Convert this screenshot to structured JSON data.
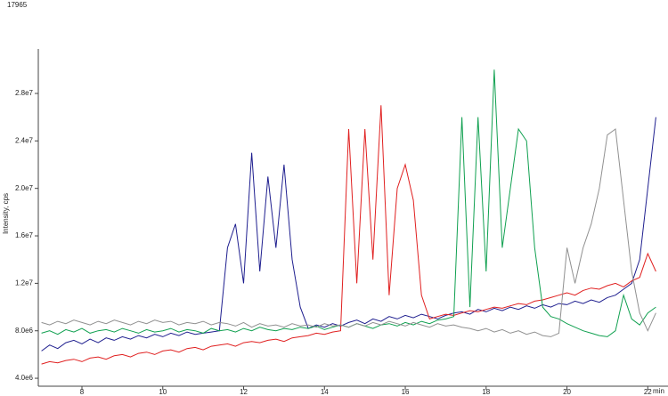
{
  "chart_data": {
    "type": "line",
    "title": "17965",
    "ylabel": "Intensity, cps",
    "xlabel": "min",
    "xlim": [
      6.92,
      22.5
    ],
    "ylim": [
      3330000,
      31750000
    ],
    "xticks": [
      8,
      10,
      12,
      14,
      16,
      18,
      20,
      22
    ],
    "yticks": [
      {
        "value": 4000000,
        "label": "4.0e6"
      },
      {
        "value": 8000000,
        "label": "8.0e6"
      },
      {
        "value": 12000000,
        "label": "1.2e7"
      },
      {
        "value": 16000000,
        "label": "1.6e7"
      },
      {
        "value": 20000000,
        "label": "2.0e7"
      },
      {
        "value": 24000000,
        "label": "2.4e7"
      },
      {
        "value": 28000000,
        "label": "2.8e7"
      }
    ],
    "x": [
      7.0,
      7.2,
      7.4,
      7.6,
      7.8,
      8.0,
      8.2,
      8.4,
      8.6,
      8.8,
      9.0,
      9.2,
      9.4,
      9.6,
      9.8,
      10.0,
      10.2,
      10.4,
      10.6,
      10.8,
      11.0,
      11.2,
      11.4,
      11.6,
      11.8,
      12.0,
      12.2,
      12.4,
      12.6,
      12.8,
      13.0,
      13.2,
      13.4,
      13.6,
      13.8,
      14.0,
      14.2,
      14.4,
      14.6,
      14.8,
      15.0,
      15.2,
      15.4,
      15.6,
      15.8,
      16.0,
      16.2,
      16.4,
      16.6,
      16.8,
      17.0,
      17.2,
      17.4,
      17.6,
      17.8,
      18.0,
      18.2,
      18.4,
      18.6,
      18.8,
      19.0,
      19.2,
      19.4,
      19.6,
      19.8,
      20.0,
      20.2,
      20.4,
      20.6,
      20.8,
      21.0,
      21.2,
      21.4,
      21.6,
      21.8,
      22.0,
      22.2
    ],
    "series": [
      {
        "color": "#1f1f8f",
        "values": [
          6300000.0,
          6800000.0,
          6500000.0,
          7000000.0,
          7200000.0,
          6900000.0,
          7300000.0,
          7000000.0,
          7400000.0,
          7200000.0,
          7500000.0,
          7300000.0,
          7600000.0,
          7400000.0,
          7700000.0,
          7500000.0,
          7800000.0,
          7600000.0,
          7900000.0,
          7700000.0,
          7800000.0,
          7900000.0,
          8000000.0,
          15000000.0,
          17000000.0,
          12000000.0,
          23000000.0,
          13000000.0,
          21000000.0,
          15000000.0,
          22000000.0,
          14000000.0,
          10000000.0,
          8200000.0,
          8500000.0,
          8300000.0,
          8600000.0,
          8400000.0,
          8700000.0,
          8900000.0,
          8600000.0,
          9000000.0,
          8800000.0,
          9200000.0,
          9000000.0,
          9300000.0,
          9100000.0,
          9400000.0,
          9200000.0,
          9000000.0,
          9300000.0,
          9500000.0,
          9600000.0,
          9400000.0,
          9800000.0,
          9600000.0,
          9900000.0,
          9700000.0,
          10000000.0,
          9800000.0,
          10100000.0,
          9900000.0,
          10200000.0,
          10000000.0,
          10300000.0,
          10200000.0,
          10500000.0,
          10300000.0,
          10600000.0,
          10400000.0,
          10800000.0,
          11000000.0,
          11500000.0,
          12000000.0,
          14000000.0,
          20000000.0,
          26000000.0
        ]
      },
      {
        "color": "#e02020",
        "values": [
          5200000.0,
          5400000.0,
          5300000.0,
          5500000.0,
          5600000.0,
          5400000.0,
          5700000.0,
          5800000.0,
          5600000.0,
          5900000.0,
          6000000.0,
          5800000.0,
          6100000.0,
          6200000.0,
          6000000.0,
          6300000.0,
          6400000.0,
          6200000.0,
          6500000.0,
          6600000.0,
          6400000.0,
          6700000.0,
          6800000.0,
          6900000.0,
          6700000.0,
          7000000.0,
          7100000.0,
          7000000.0,
          7200000.0,
          7300000.0,
          7100000.0,
          7400000.0,
          7500000.0,
          7600000.0,
          7800000.0,
          7700000.0,
          7900000.0,
          8000000.0,
          25000000.0,
          12000000.0,
          25000000.0,
          14000000.0,
          27000000.0,
          11000000.0,
          20000000.0,
          22000000.0,
          19000000.0,
          11000000.0,
          9000000.0,
          9200000.0,
          9400000.0,
          9300000.0,
          9500000.0,
          9700000.0,
          9600000.0,
          9800000.0,
          10000000.0,
          9900000.0,
          10100000.0,
          10300000.0,
          10200000.0,
          10500000.0,
          10600000.0,
          10800000.0,
          11000000.0,
          11200000.0,
          11000000.0,
          11400000.0,
          11600000.0,
          11500000.0,
          11800000.0,
          12000000.0,
          11700000.0,
          12200000.0,
          12500000.0,
          14500000.0,
          13000000.0
        ]
      },
      {
        "color": "#10a050",
        "values": [
          7800000.0,
          8000000.0,
          7700000.0,
          8100000.0,
          7900000.0,
          8200000.0,
          7800000.0,
          8000000.0,
          8100000.0,
          7900000.0,
          8200000.0,
          8000000.0,
          7800000.0,
          8100000.0,
          7900000.0,
          8000000.0,
          8200000.0,
          7900000.0,
          8100000.0,
          8000000.0,
          7800000.0,
          8200000.0,
          8000000.0,
          8100000.0,
          7900000.0,
          8200000.0,
          8000000.0,
          8300000.0,
          8100000.0,
          8000000.0,
          8200000.0,
          8100000.0,
          8300000.0,
          8200000.0,
          8400000.0,
          8100000.0,
          8300000.0,
          8500000.0,
          8300000.0,
          8600000.0,
          8400000.0,
          8200000.0,
          8500000.0,
          8600000.0,
          8400000.0,
          8700000.0,
          8500000.0,
          8800000.0,
          8600000.0,
          8900000.0,
          9000000.0,
          9200000.0,
          26000000.0,
          10000000.0,
          26000000.0,
          13000000.0,
          30000000.0,
          15000000.0,
          20000000.0,
          25000000.0,
          24000000.0,
          15000000.0,
          10000000.0,
          9200000.0,
          9000000.0,
          8600000.0,
          8300000.0,
          8000000.0,
          7800000.0,
          7600000.0,
          7500000.0,
          8000000.0,
          11000000.0,
          9000000.0,
          8500000.0,
          9500000.0,
          10000000.0
        ]
      },
      {
        "color": "#909090",
        "values": [
          8700000.0,
          8500000.0,
          8800000.0,
          8600000.0,
          8900000.0,
          8700000.0,
          8500000.0,
          8800000.0,
          8600000.0,
          8900000.0,
          8700000.0,
          8500000.0,
          8800000.0,
          8600000.0,
          8900000.0,
          8700000.0,
          8800000.0,
          8500000.0,
          8700000.0,
          8600000.0,
          8800000.0,
          8500000.0,
          8700000.0,
          8600000.0,
          8400000.0,
          8700000.0,
          8300000.0,
          8600000.0,
          8400000.0,
          8500000.0,
          8300000.0,
          8600000.0,
          8400000.0,
          8500000.0,
          8300000.0,
          8600000.0,
          8400000.0,
          8500000.0,
          8300000.0,
          8600000.0,
          8400000.0,
          8700000.0,
          8500000.0,
          8800000.0,
          8600000.0,
          8400000.0,
          8700000.0,
          8500000.0,
          8300000.0,
          8600000.0,
          8400000.0,
          8500000.0,
          8300000.0,
          8200000.0,
          8000000.0,
          8200000.0,
          7900000.0,
          8100000.0,
          7800000.0,
          8000000.0,
          7700000.0,
          7900000.0,
          7600000.0,
          7500000.0,
          7800000.0,
          15000000.0,
          12000000.0,
          15000000.0,
          17000000.0,
          20000000.0,
          24500000.0,
          25000000.0,
          19000000.0,
          13000000.0,
          9500000.0,
          8000000.0,
          9500000.0
        ]
      }
    ]
  }
}
